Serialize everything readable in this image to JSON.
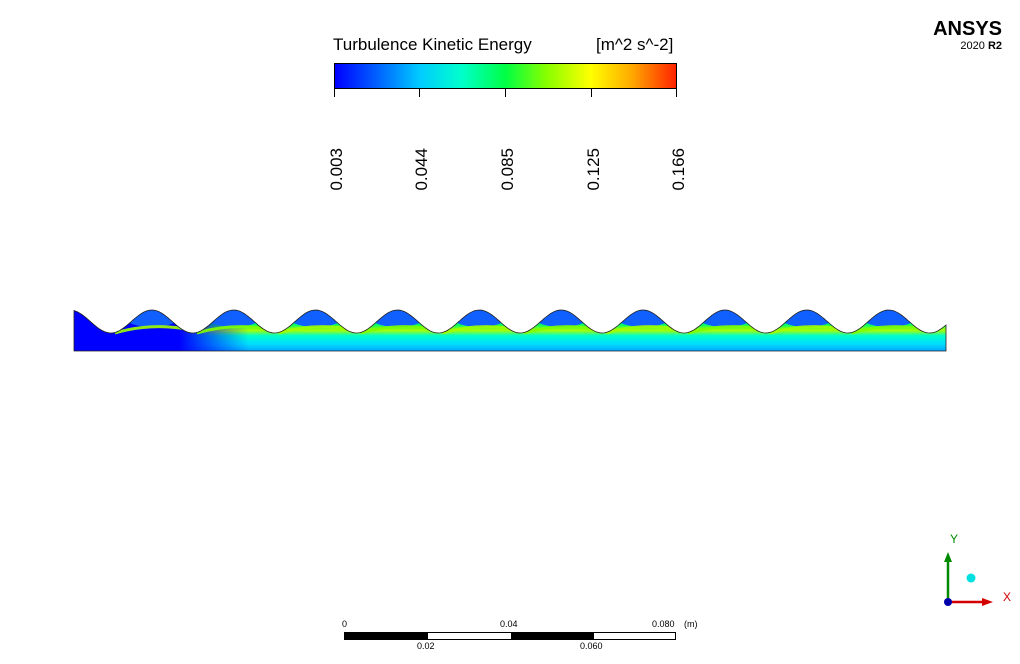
{
  "legend": {
    "title": "Turbulence Kinetic Energy",
    "unit": "[m^2 s^-2]",
    "ticks": [
      "0.003",
      "0.044",
      "0.085",
      "0.125",
      "0.166"
    ],
    "colormap": [
      "#0000ff",
      "#00ccff",
      "#00ff44",
      "#ffff00",
      "#ff2200"
    ]
  },
  "brand": {
    "name": "ANSYS",
    "version": "2020",
    "release": "R2"
  },
  "scale_bar": {
    "top_labels": [
      "0",
      "0.04",
      "0.080"
    ],
    "unit": "(m)",
    "bottom_labels": [
      "0.02",
      "0.060"
    ]
  },
  "axes": {
    "x_label": "X",
    "y_label": "Y",
    "x_color": "#d40000",
    "y_color": "#008a00"
  },
  "contour": {
    "wave_count": 11
  }
}
